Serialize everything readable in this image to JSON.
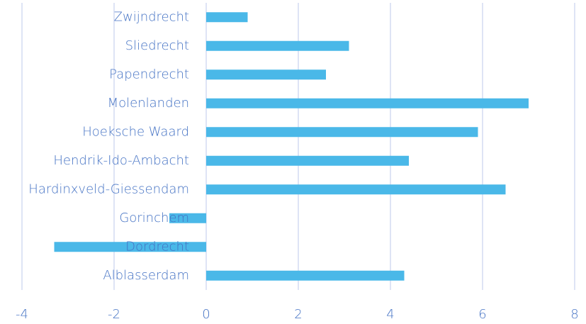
{
  "chart_data": {
    "type": "barh",
    "categories": [
      "Alblasserdam",
      "Dordrecht",
      "Gorinchem",
      "Hardinxveld-Giessendam",
      "Hendrik-Ido-Ambacht",
      "Hoeksche Waard",
      "Molenlanden",
      "Papendrecht",
      "Sliedrecht",
      "Zwijndrecht"
    ],
    "values": [
      4.3,
      -3.3,
      -0.8,
      6.5,
      4.4,
      5.9,
      7.0,
      2.6,
      3.1,
      0.9
    ],
    "color": "#4ab8e8",
    "xlim": [
      -4,
      8
    ],
    "xticks": [
      -4,
      -2,
      0,
      2,
      4,
      6,
      8
    ],
    "grid": true
  }
}
